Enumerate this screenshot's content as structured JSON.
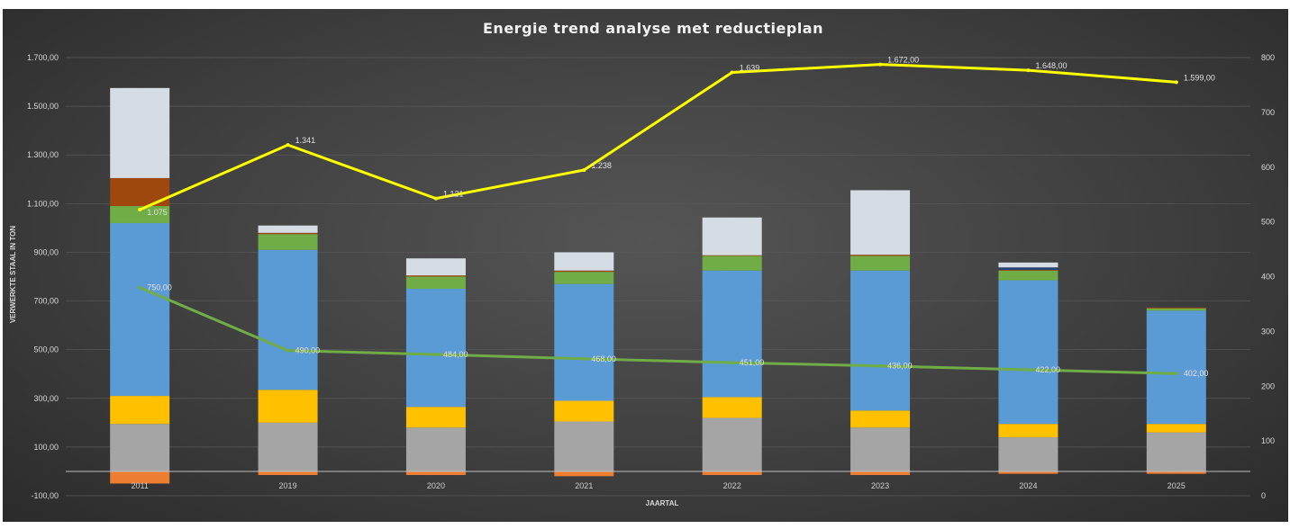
{
  "chart_data": {
    "type": "bar",
    "title": "Energie trend analyse met reductieplan",
    "xlabel": "JAARTAL",
    "ylabel": "VERWERKTE STAAL IN TON",
    "ylim": [
      -100,
      1700
    ],
    "y_ticks": [
      "1.700,00",
      "1.500,00",
      "1.300,00",
      "1.100,00",
      "900,00",
      "700,00",
      "500,00",
      "300,00",
      "100,00",
      "-100,00"
    ],
    "y2lim": [
      0,
      800
    ],
    "y2_ticks": [
      "800",
      "700",
      "600",
      "500",
      "400",
      "300",
      "200",
      "100",
      "0"
    ],
    "grid": true,
    "categories": [
      "2011",
      "2019",
      "2020",
      "2021",
      "2022",
      "2023",
      "2024",
      "2025"
    ],
    "colors": {
      "orange": "#ed7d31",
      "gray": "#a5a5a5",
      "gold": "#ffc000",
      "blue": "#5b9bd5",
      "green": "#70ad47",
      "brown": "#9e480e",
      "navy": "#264478",
      "light": "#d6dce4",
      "line_yellow": "#ffff00",
      "line_green": "#70ad47"
    },
    "stacked_series": [
      {
        "color_key": "orange",
        "values": [
          -50,
          -15,
          -15,
          -20,
          -15,
          -15,
          -10,
          -10
        ]
      },
      {
        "color_key": "gray",
        "values": [
          195,
          200,
          180,
          205,
          220,
          180,
          140,
          160
        ]
      },
      {
        "color_key": "gold",
        "values": [
          115,
          135,
          85,
          85,
          85,
          70,
          55,
          35
        ]
      },
      {
        "color_key": "blue",
        "values": [
          710,
          575,
          485,
          480,
          520,
          575,
          590,
          465
        ]
      },
      {
        "color_key": "green",
        "values": [
          70,
          65,
          50,
          50,
          60,
          60,
          40,
          10
        ]
      },
      {
        "color_key": "brown",
        "values": [
          115,
          5,
          5,
          5,
          3,
          5,
          3,
          3
        ]
      },
      {
        "color_key": "navy",
        "values": [
          0,
          0,
          0,
          0,
          0,
          0,
          10,
          0
        ]
      },
      {
        "color_key": "light",
        "values": [
          370,
          30,
          70,
          75,
          155,
          265,
          20,
          0
        ]
      }
    ],
    "line_series": [
      {
        "color_key": "line_yellow",
        "axis": "left",
        "values": [
          1075,
          1341,
          1121,
          1238,
          1639,
          1672,
          1648,
          1599
        ],
        "labels": [
          "1.075",
          "1.341",
          "1.121",
          "1.238",
          "1.639",
          "1.672,00",
          "1.648,00",
          "1.599,00"
        ]
      },
      {
        "color_key": "line_green",
        "axis": "right",
        "values": [
          380,
          265,
          258,
          250,
          243,
          237,
          230,
          223
        ],
        "labels": [
          "750,00",
          "490,00",
          "484,00",
          "468,00",
          "451,00",
          "436,00",
          "422,00",
          "402,00"
        ]
      }
    ]
  }
}
